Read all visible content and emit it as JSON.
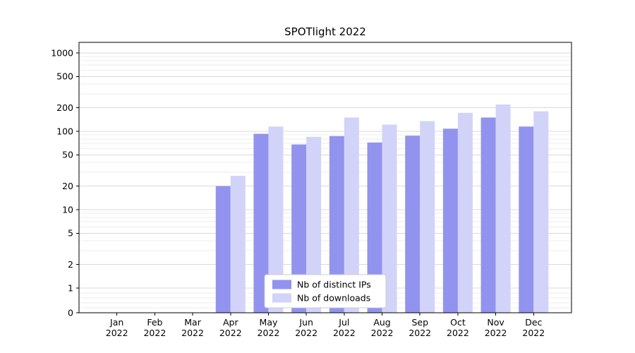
{
  "chart_data": {
    "type": "bar",
    "title": "SPOTlight 2022",
    "scale": "symlog",
    "categories": [
      "Jan 2022",
      "Feb 2022",
      "Mar 2022",
      "Apr 2022",
      "May 2022",
      "Jun 2022",
      "Jul 2022",
      "Aug 2022",
      "Sep 2022",
      "Oct 2022",
      "Nov 2022",
      "Dec 2022"
    ],
    "series": [
      {
        "name": "Nb of distinct IPs",
        "color": "#9193ee",
        "values": [
          0,
          0,
          0,
          20,
          93,
          68,
          87,
          72,
          88,
          108,
          150,
          115
        ]
      },
      {
        "name": "Nb of downloads",
        "color": "#d2d3f8",
        "values": [
          0,
          0,
          0,
          27,
          115,
          85,
          150,
          122,
          135,
          172,
          220,
          180
        ]
      }
    ],
    "yticks": [
      0,
      1,
      2,
      5,
      10,
      20,
      50,
      100,
      200,
      500,
      1000
    ],
    "yticks_minor": [
      0.2,
      0.4,
      0.6,
      0.8,
      3,
      4,
      6,
      7,
      8,
      9,
      30,
      40,
      60,
      70,
      80,
      90,
      300,
      400,
      600,
      700,
      800,
      900
    ],
    "ylim": [
      0,
      1200
    ],
    "xlabel": "",
    "ylabel": "",
    "grid": true,
    "legend_position": "lower center",
    "colors": {
      "grid_major": "#d9d9d9",
      "grid_minor": "#ededed",
      "spine": "#000000",
      "legend_border": "#cccccc",
      "legend_bg": "#ffffff"
    }
  }
}
